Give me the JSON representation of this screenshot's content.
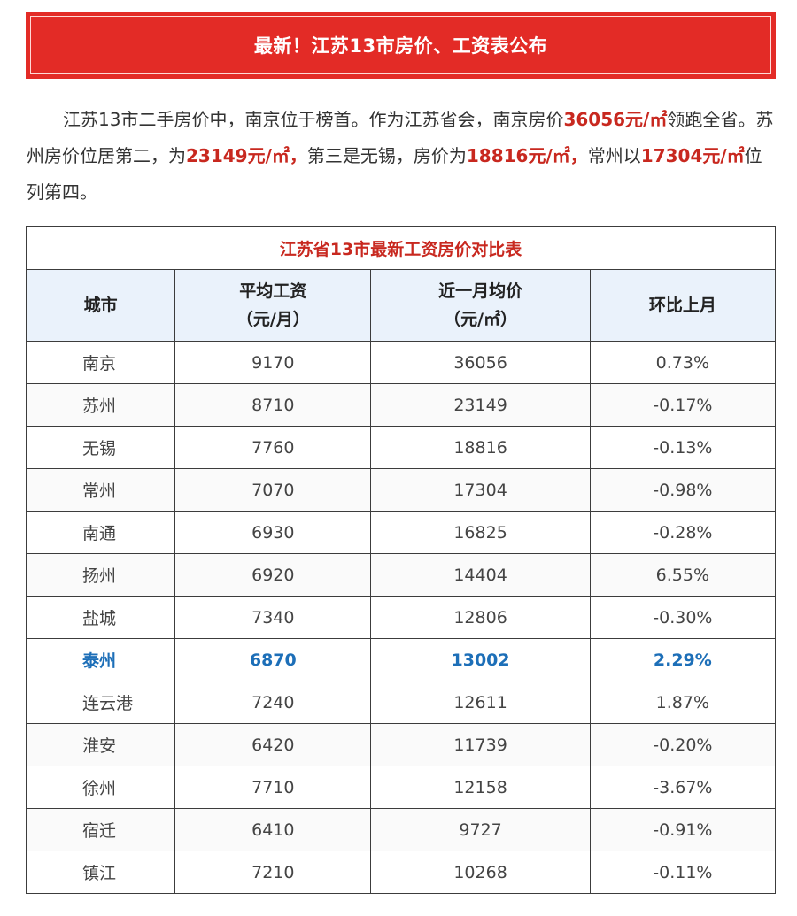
{
  "banner": {
    "title": "最新！江苏13市房价、工资表公布"
  },
  "article": {
    "segments": [
      {
        "text": "江苏13市二手房价中，南京位于榜首。作为江苏省会，南京房价",
        "hl": false
      },
      {
        "text": "36056元/㎡",
        "hl": true
      },
      {
        "text": "领跑全省。苏州房价位居第二，为",
        "hl": false
      },
      {
        "text": "23149元/㎡，",
        "hl": true
      },
      {
        "text": "第三是无锡，房价为",
        "hl": false
      },
      {
        "text": "18816元/㎡，",
        "hl": true
      },
      {
        "text": "常州以",
        "hl": false
      },
      {
        "text": "17304元/㎡",
        "hl": true
      },
      {
        "text": "位列第四。",
        "hl": false
      }
    ]
  },
  "table": {
    "caption": "江苏省13市最新工资房价对比表",
    "headers": {
      "city": "城市",
      "wage_line1": "平均工资",
      "wage_line2": "（元/月）",
      "price_line1": "近一月均价",
      "price_line2": "（元/㎡）",
      "change": "环比上月"
    },
    "rows": [
      {
        "city": "南京",
        "wage": "9170",
        "price": "36056",
        "change": "0.73%"
      },
      {
        "city": "苏州",
        "wage": "8710",
        "price": "23149",
        "change": "-0.17%"
      },
      {
        "city": "无锡",
        "wage": "7760",
        "price": "18816",
        "change": "-0.13%"
      },
      {
        "city": "常州",
        "wage": "7070",
        "price": "17304",
        "change": "-0.98%"
      },
      {
        "city": "南通",
        "wage": "6930",
        "price": "16825",
        "change": "-0.28%"
      },
      {
        "city": "扬州",
        "wage": "6920",
        "price": "14404",
        "change": "6.55%"
      },
      {
        "city": "盐城",
        "wage": "7340",
        "price": "12806",
        "change": "-0.30%"
      },
      {
        "city": "泰州",
        "wage": "6870",
        "price": "13002",
        "change": "2.29%",
        "highlight": true
      },
      {
        "city": "连云港",
        "wage": "7240",
        "price": "12611",
        "change": "1.87%"
      },
      {
        "city": "淮安",
        "wage": "6420",
        "price": "11739",
        "change": "-0.20%"
      },
      {
        "city": "徐州",
        "wage": "7710",
        "price": "12158",
        "change": "-3.67%"
      },
      {
        "city": "宿迁",
        "wage": "6410",
        "price": "9727",
        "change": "-0.91%"
      },
      {
        "city": "镇江",
        "wage": "7210",
        "price": "10268",
        "change": "-0.11%"
      }
    ]
  },
  "colors": {
    "banner": "#e32b26",
    "highlight_text": "#c8281f",
    "highlight_row": "#1d6fb8",
    "header_bg": "#eaf2fb"
  }
}
